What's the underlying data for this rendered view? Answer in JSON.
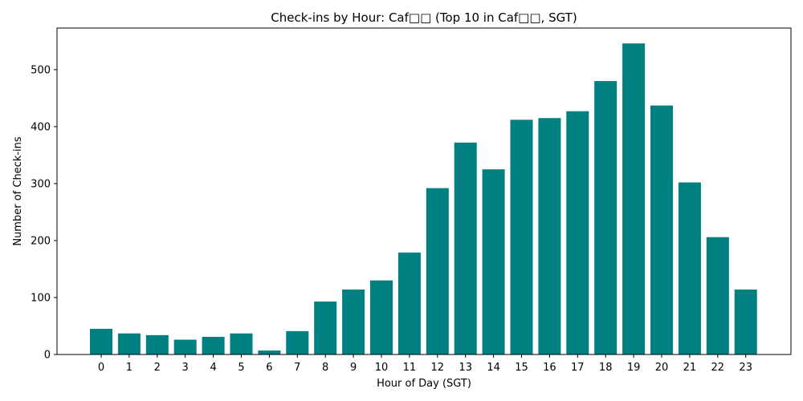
{
  "chart_data": {
    "type": "bar",
    "title": "Check-ins by Hour: Caf□□ (Top 10 in Caf□□, SGT)",
    "xlabel": "Hour of Day (SGT)",
    "ylabel": "Number of Check-ins",
    "categories": [
      "0",
      "1",
      "2",
      "3",
      "4",
      "5",
      "6",
      "7",
      "8",
      "9",
      "10",
      "11",
      "12",
      "13",
      "14",
      "15",
      "16",
      "17",
      "18",
      "19",
      "20",
      "21",
      "22",
      "23"
    ],
    "values": [
      45,
      37,
      34,
      26,
      31,
      37,
      7,
      41,
      93,
      114,
      130,
      179,
      292,
      372,
      325,
      412,
      415,
      427,
      480,
      546,
      437,
      302,
      206,
      114
    ],
    "ylim": [
      0,
      573
    ],
    "yticks": [
      0,
      100,
      200,
      300,
      400,
      500
    ],
    "bar_color": "#008080",
    "grid": false,
    "legend": "none"
  }
}
